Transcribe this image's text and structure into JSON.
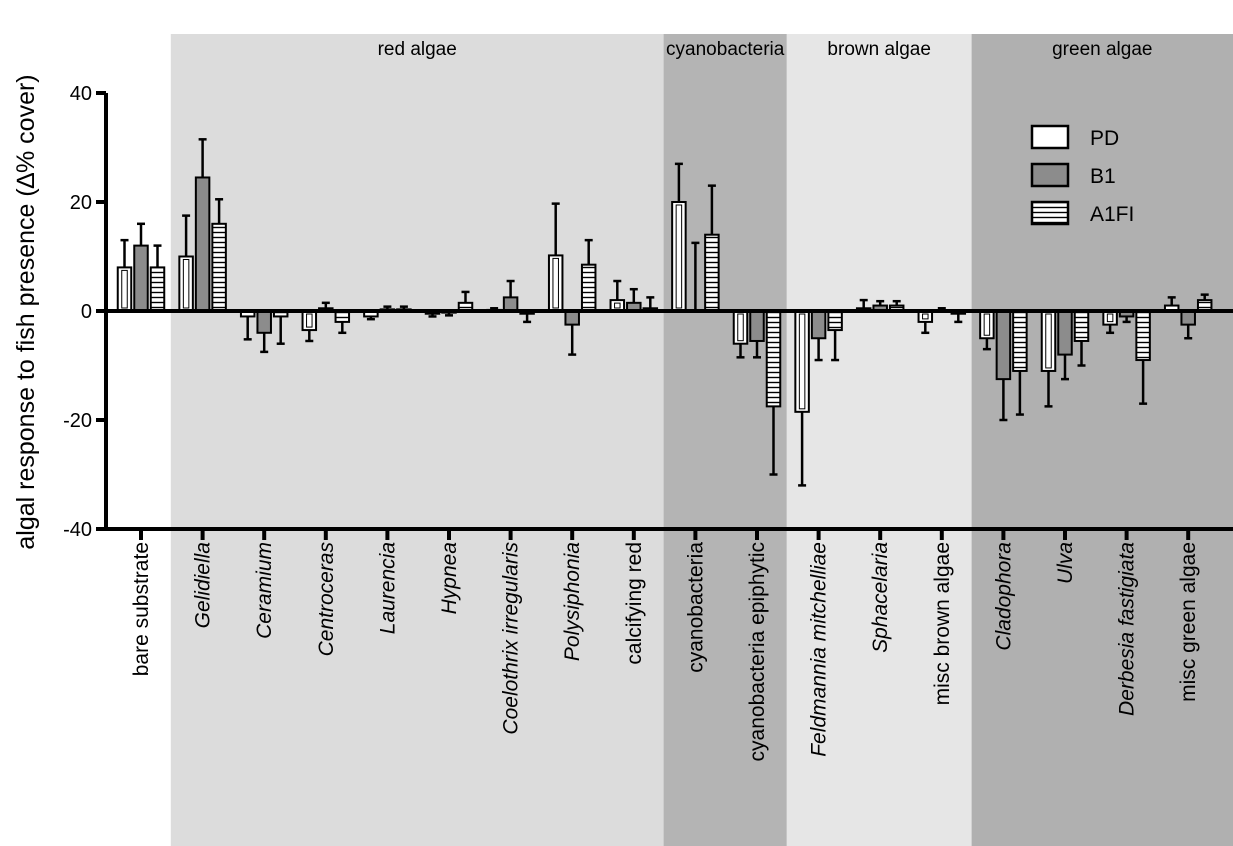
{
  "chart_data": {
    "type": "bar",
    "ylabel": "algal response to fish presence (∆% cover)",
    "ylim": [
      -40,
      40
    ],
    "yticks": [
      -40,
      -20,
      0,
      20,
      40
    ],
    "legend_position": "top-right",
    "series": [
      {
        "name": "PD",
        "pattern": "open",
        "fill": "#ffffff"
      },
      {
        "name": "B1",
        "pattern": "solid",
        "fill": "#8c8c8c"
      },
      {
        "name": "A1FI",
        "pattern": "horizontal-stripes",
        "fill": "#ffffff"
      }
    ],
    "groups": [
      {
        "name": "",
        "shade": "#ffffff",
        "categories": [
          0
        ]
      },
      {
        "name": "red algae",
        "shade": "#dcdcdc",
        "categories": [
          1,
          2,
          3,
          4,
          5,
          6,
          7,
          8
        ]
      },
      {
        "name": "cyanobacteria",
        "shade": "#b4b4b4",
        "categories": [
          9,
          10
        ]
      },
      {
        "name": "brown algae",
        "shade": "#e6e6e6",
        "categories": [
          11,
          12,
          13
        ]
      },
      {
        "name": "green algae",
        "shade": "#b0b0b0",
        "categories": [
          14,
          15,
          16,
          17
        ]
      }
    ],
    "categories": [
      {
        "label": "bare substrate",
        "italic": false,
        "values": [
          8,
          12,
          8
        ],
        "errors": [
          5,
          4,
          4
        ]
      },
      {
        "label": "Gelidiella",
        "italic": true,
        "values": [
          10,
          24.5,
          16
        ],
        "errors": [
          7.5,
          7,
          4.5
        ]
      },
      {
        "label": "Ceramium",
        "italic": true,
        "values": [
          -1,
          -4,
          -1
        ],
        "errors": [
          4.2,
          3.5,
          5
        ]
      },
      {
        "label": "Centroceras",
        "italic": true,
        "values": [
          -3.5,
          0.5,
          -2
        ],
        "errors": [
          2,
          1,
          2
        ]
      },
      {
        "label": "Laurencia",
        "italic": true,
        "values": [
          -1,
          0.3,
          0.3
        ],
        "errors": [
          0.5,
          0.5,
          0.5
        ]
      },
      {
        "label": "Hypnea",
        "italic": true,
        "values": [
          -0.5,
          -0.3,
          1.5
        ],
        "errors": [
          0.5,
          0.5,
          2
        ]
      },
      {
        "label": "Coelothrix irregularis",
        "italic": true,
        "values": [
          0.2,
          2.5,
          -0.5
        ],
        "errors": [
          0.3,
          3,
          1.5
        ]
      },
      {
        "label": "Polysiphonia",
        "italic": true,
        "values": [
          10.2,
          -2.5,
          8.5
        ],
        "errors": [
          9.5,
          5.5,
          4.5
        ]
      },
      {
        "label": "calcifying red",
        "italic": false,
        "values": [
          2,
          1.5,
          0.5
        ],
        "errors": [
          3.5,
          2.5,
          2
        ]
      },
      {
        "label": "cyanobacteria",
        "italic": false,
        "values": [
          20,
          0,
          14
        ],
        "errors": [
          7,
          12.5,
          9
        ]
      },
      {
        "label": "cyanobacteria epiphytic",
        "italic": false,
        "values": [
          -6,
          -5.5,
          -17.5
        ],
        "errors": [
          2.5,
          3,
          12.5
        ]
      },
      {
        "label": "Feldmannia mitchelliae",
        "italic": true,
        "values": [
          -18.5,
          -5,
          -3.5
        ],
        "errors": [
          13.5,
          4,
          5.5
        ]
      },
      {
        "label": "Sphacelaria",
        "italic": true,
        "values": [
          0.5,
          1,
          1
        ],
        "errors": [
          1.5,
          0.8,
          0.8
        ]
      },
      {
        "label": "misc brown algae",
        "italic": false,
        "values": [
          -2,
          0,
          -0.5
        ],
        "errors": [
          2,
          0.5,
          1.5
        ]
      },
      {
        "label": "Cladophora",
        "italic": true,
        "values": [
          -5,
          -12.5,
          -11
        ],
        "errors": [
          2,
          7.5,
          8
        ]
      },
      {
        "label": "Ulva",
        "italic": true,
        "values": [
          -11,
          -8,
          -5.5
        ],
        "errors": [
          6.5,
          4.5,
          4.5
        ]
      },
      {
        "label": "Derbesia fastigiata",
        "italic": true,
        "values": [
          -2.5,
          -1,
          -9
        ],
        "errors": [
          1.5,
          1,
          8
        ]
      },
      {
        "label": "misc green algae",
        "italic": false,
        "values": [
          1,
          -2.5,
          2
        ],
        "errors": [
          1.5,
          2.5,
          1
        ]
      }
    ]
  }
}
